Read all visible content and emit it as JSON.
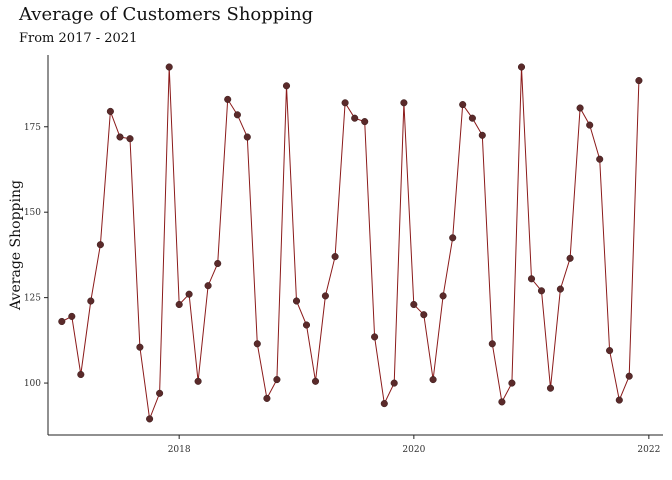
{
  "chart_data": {
    "type": "line",
    "title": "Average of Customers Shopping",
    "subtitle": "From 2017 - 2021",
    "xlabel": "",
    "ylabel": "Average Shopping",
    "xlim": [
      "2016-11-19",
      "2022-02-14"
    ],
    "ylim": [
      84.8,
      196
    ],
    "x_ticks": [
      "2018-01-01",
      "2020-01-01",
      "2022-01-01"
    ],
    "x_tick_labels": [
      "2018",
      "2020",
      "2022"
    ],
    "y_ticks": [
      100,
      125,
      150,
      175
    ],
    "grid": false,
    "legend": "none",
    "colors": {
      "line": "#8b1a1a",
      "point": "#5a2a2a"
    },
    "series": [
      {
        "x": [
          "2017-01-01",
          "2017-02-01",
          "2017-03-01",
          "2017-04-01",
          "2017-05-01",
          "2017-06-01",
          "2017-07-01",
          "2017-08-01",
          "2017-09-01",
          "2017-10-01",
          "2017-11-01",
          "2017-12-01",
          "2018-01-01",
          "2018-02-01",
          "2018-03-01",
          "2018-04-01",
          "2018-05-01",
          "2018-06-01",
          "2018-07-01",
          "2018-08-01",
          "2018-09-01",
          "2018-10-01",
          "2018-11-01",
          "2018-12-01",
          "2019-01-01",
          "2019-02-01",
          "2019-03-01",
          "2019-04-01",
          "2019-05-01",
          "2019-06-01",
          "2019-07-01",
          "2019-08-01",
          "2019-09-01",
          "2019-10-01",
          "2019-11-01",
          "2019-12-01",
          "2020-01-01",
          "2020-02-01",
          "2020-03-01",
          "2020-04-01",
          "2020-05-01",
          "2020-06-01",
          "2020-07-01",
          "2020-08-01",
          "2020-09-01",
          "2020-10-01",
          "2020-11-01",
          "2020-12-01",
          "2021-01-01",
          "2021-02-01",
          "2021-03-01",
          "2021-04-01",
          "2021-05-01",
          "2021-06-01",
          "2021-07-01",
          "2021-08-01",
          "2021-09-01",
          "2021-10-01",
          "2021-11-01",
          "2021-12-01"
        ],
        "values": [
          118,
          119.5,
          102.5,
          124,
          140.5,
          179.5,
          172,
          171.5,
          110.5,
          89.5,
          97,
          192.5,
          123,
          126,
          100.5,
          128.5,
          135,
          183,
          178.5,
          172,
          111.5,
          95.5,
          101,
          187,
          124,
          117,
          100.5,
          125.5,
          137,
          182,
          177.5,
          176.5,
          113.5,
          94,
          100,
          182,
          123,
          120,
          101,
          125.5,
          142.5,
          181.5,
          177.5,
          172.5,
          111.5,
          94.5,
          100,
          192.5,
          130.5,
          127,
          98.5,
          127.5,
          136.5,
          180.5,
          175.5,
          165.5,
          109.5,
          95,
          102,
          188.5
        ]
      }
    ]
  }
}
